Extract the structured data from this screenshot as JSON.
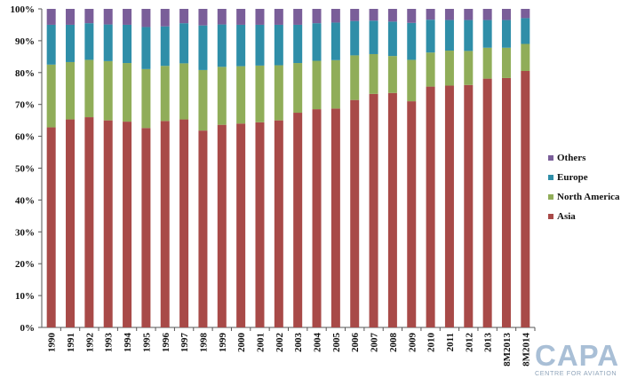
{
  "chart_data": {
    "type": "bar",
    "stacked": true,
    "categories": [
      "1990",
      "1991",
      "1992",
      "1993",
      "1994",
      "1995",
      "1996",
      "1997",
      "1998",
      "1999",
      "2000",
      "2001",
      "2002",
      "2003",
      "2004",
      "2005",
      "2006",
      "2007",
      "2008",
      "2009",
      "2010",
      "2011",
      "2012",
      "2013",
      "8M2013",
      "8M2014"
    ],
    "series": [
      {
        "name": "Asia",
        "color": "#a84a48",
        "values": [
          62.8,
          65.3,
          66.0,
          65.0,
          64.6,
          62.6,
          64.8,
          65.3,
          61.8,
          63.6,
          64.0,
          64.4,
          65.0,
          67.4,
          68.5,
          68.7,
          71.4,
          73.3,
          73.6,
          71.0,
          75.6,
          75.9,
          76.1,
          78.1,
          78.3,
          80.5
        ]
      },
      {
        "name": "North America",
        "color": "#90ad59",
        "values": [
          19.7,
          18.0,
          18.0,
          18.6,
          18.4,
          18.5,
          17.3,
          17.6,
          19.0,
          18.2,
          18.0,
          17.8,
          17.3,
          15.6,
          15.2,
          15.2,
          14.0,
          12.5,
          11.6,
          13.0,
          10.7,
          11.0,
          10.7,
          9.7,
          9.5,
          8.5
        ]
      },
      {
        "name": "Europe",
        "color": "#2f8ea8",
        "values": [
          12.5,
          11.7,
          11.5,
          11.5,
          12.0,
          13.2,
          12.4,
          12.6,
          14.0,
          13.3,
          13.0,
          12.8,
          12.7,
          12.0,
          11.8,
          11.8,
          10.8,
          10.5,
          10.8,
          11.6,
          10.3,
          9.6,
          9.7,
          8.7,
          8.7,
          8.1
        ]
      },
      {
        "name": "Others",
        "color": "#7a5e99",
        "values": [
          5.0,
          5.0,
          4.5,
          4.9,
          5.0,
          5.7,
          5.5,
          4.5,
          5.2,
          4.9,
          5.0,
          5.0,
          5.0,
          5.0,
          4.5,
          4.3,
          3.8,
          3.7,
          4.0,
          4.4,
          3.4,
          3.5,
          3.5,
          3.5,
          3.5,
          2.9
        ]
      }
    ],
    "ylim": [
      0,
      100
    ],
    "yticks": [
      "0%",
      "10%",
      "20%",
      "30%",
      "40%",
      "50%",
      "60%",
      "70%",
      "80%",
      "90%",
      "100%"
    ],
    "legend_position": "right",
    "legend_order": [
      "Others",
      "Europe",
      "North America",
      "Asia"
    ],
    "grid": false
  },
  "logo": {
    "text": "CAPA",
    "subtitle": "CENTRE FOR AVIATION"
  }
}
